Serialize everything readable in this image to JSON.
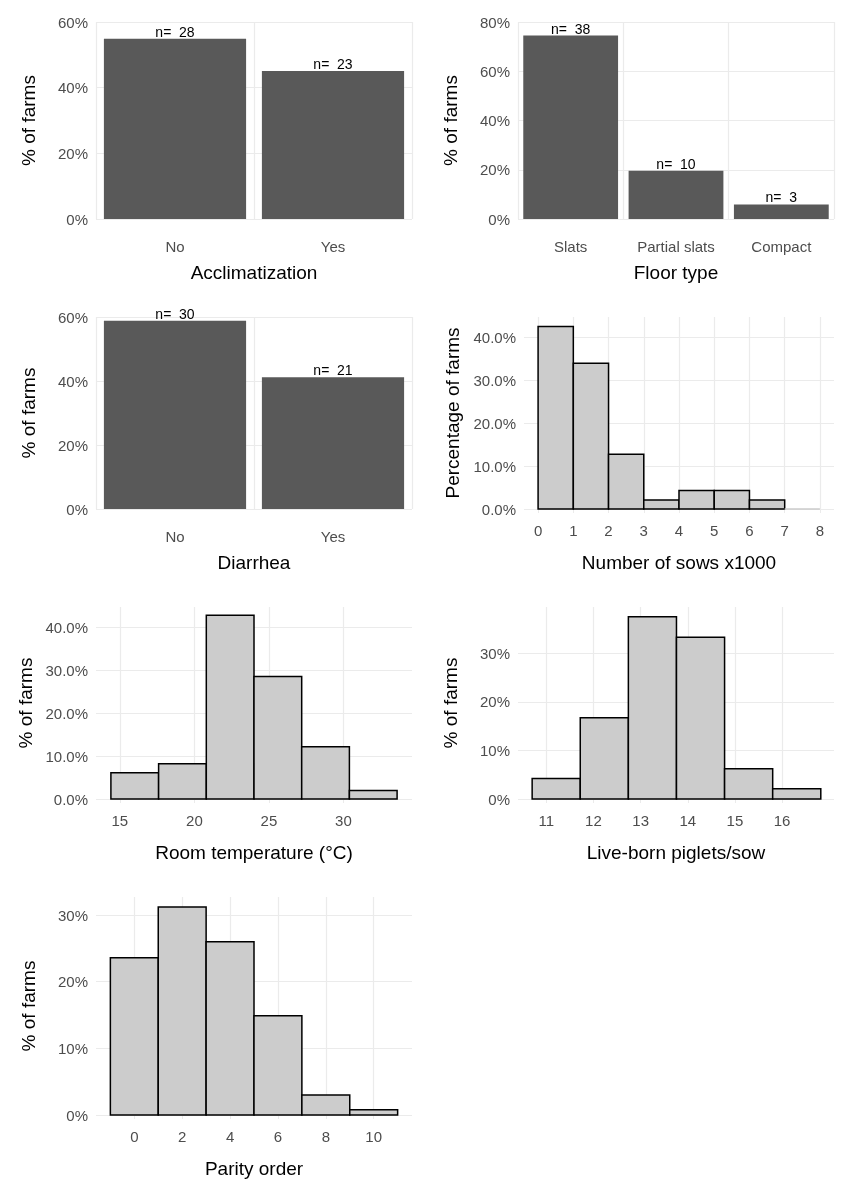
{
  "chart_data": [
    {
      "type": "bar",
      "xlabel": "Acclimatization",
      "ylabel": "% of farms",
      "categories": [
        "No",
        "Yes"
      ],
      "values": [
        54.9,
        45.1
      ],
      "annotations": [
        {
          "text": "n=  28",
          "x": "No",
          "y": 54.9
        },
        {
          "text": "n=  23",
          "x": "Yes",
          "y": 45.1
        }
      ],
      "color": "#595959",
      "ylim": [
        0,
        60
      ],
      "yticks": [
        {
          "value": 0,
          "label": "0%"
        },
        {
          "value": 20,
          "label": "20%"
        },
        {
          "value": 40,
          "label": "40%"
        },
        {
          "value": 60,
          "label": "60%"
        }
      ],
      "grid": true
    },
    {
      "type": "bar",
      "xlabel": "Floor type",
      "ylabel": "% of farms",
      "categories": [
        "Slats",
        "Partial slats",
        "Compact"
      ],
      "values": [
        74.5,
        19.6,
        5.9
      ],
      "annotations": [
        {
          "text": "n=  38",
          "x": "Slats",
          "y": 74.5
        },
        {
          "text": "n=  10",
          "x": "Partial slats",
          "y": 19.6
        },
        {
          "text": "n=  3",
          "x": "Compact",
          "y": 5.9
        }
      ],
      "color": "#595959",
      "ylim": [
        0,
        80
      ],
      "yticks": [
        {
          "value": 0,
          "label": "0%"
        },
        {
          "value": 20,
          "label": "20%"
        },
        {
          "value": 40,
          "label": "40%"
        },
        {
          "value": 60,
          "label": "60%"
        },
        {
          "value": 80,
          "label": "80%"
        }
      ],
      "grid": true
    },
    {
      "type": "bar",
      "xlabel": "Diarrhea",
      "ylabel": "% of farms",
      "categories": [
        "No",
        "Yes"
      ],
      "values": [
        58.8,
        41.2
      ],
      "annotations": [
        {
          "text": "n=  30",
          "x": "No",
          "y": 58.8
        },
        {
          "text": "n=  21",
          "x": "Yes",
          "y": 41.2
        }
      ],
      "color": "#595959",
      "ylim": [
        0,
        60
      ],
      "yticks": [
        {
          "value": 0,
          "label": "0%"
        },
        {
          "value": 20,
          "label": "20%"
        },
        {
          "value": 40,
          "label": "40%"
        },
        {
          "value": 60,
          "label": "60%"
        }
      ],
      "grid": true
    },
    {
      "type": "histogram",
      "xlabel": "Number of sows x1000",
      "ylabel": "Percentage of farms",
      "bins": [
        0,
        1,
        2,
        3,
        4,
        5,
        6,
        7,
        8
      ],
      "values": [
        42.6,
        34.0,
        12.8,
        2.1,
        4.3,
        4.3,
        2.1,
        0
      ],
      "color": "#cccccc",
      "xlim": [
        -0.4,
        8.4
      ],
      "xticks": [
        0,
        1,
        2,
        3,
        4,
        5,
        6,
        7,
        8
      ],
      "ylim": [
        0,
        44.8
      ],
      "yticks": [
        {
          "value": 0,
          "label": "0.0%"
        },
        {
          "value": 10,
          "label": "10.0%"
        },
        {
          "value": 20,
          "label": "20.0%"
        },
        {
          "value": 30,
          "label": "30.0%"
        },
        {
          "value": 40,
          "label": "40.0%"
        }
      ],
      "grid": true
    },
    {
      "type": "histogram",
      "xlabel": "Room temperature (°C)",
      "ylabel": "% of farms",
      "bins": [
        14.4,
        17.6,
        20.8,
        24.0,
        27.2,
        30.4,
        33.6
      ],
      "values": [
        6.1,
        8.2,
        42.9,
        28.6,
        12.2,
        2.0
      ],
      "color": "#cccccc",
      "xlim": [
        13.4,
        34.6
      ],
      "xticks": [
        15,
        20,
        25,
        30
      ],
      "ylim": [
        0,
        44.8
      ],
      "yticks": [
        {
          "value": 0,
          "label": "0.0%"
        },
        {
          "value": 10,
          "label": "10.0%"
        },
        {
          "value": 20,
          "label": "20.0%"
        },
        {
          "value": 30,
          "label": "30.0%"
        },
        {
          "value": 40,
          "label": "40.0%"
        }
      ],
      "grid": true
    },
    {
      "type": "histogram",
      "xlabel": "Live-born piglets/sow",
      "ylabel": "% of farms",
      "bins": [
        10.7,
        11.72,
        12.74,
        13.76,
        14.78,
        15.8,
        16.82
      ],
      "values": [
        4.2,
        16.7,
        37.5,
        33.3,
        6.2,
        2.1
      ],
      "color": "#cccccc",
      "xlim": [
        10.4,
        17.1
      ],
      "xticks": [
        11,
        12,
        13,
        14,
        15,
        16
      ],
      "ylim": [
        0,
        39.5
      ],
      "yticks": [
        {
          "value": 0,
          "label": "0%"
        },
        {
          "value": 10,
          "label": "10%"
        },
        {
          "value": 20,
          "label": "20%"
        },
        {
          "value": 30,
          "label": "30%"
        }
      ],
      "grid": true
    },
    {
      "type": "histogram",
      "xlabel": "Parity order",
      "ylabel": "% of farms",
      "bins": [
        -1,
        1,
        3,
        5,
        7,
        9,
        11
      ],
      "values": [
        23.6,
        31.2,
        26.0,
        14.9,
        3.0,
        0.8
      ],
      "color": "#cccccc",
      "xlim": [
        -1.6,
        11.6
      ],
      "xticks": [
        0,
        2,
        4,
        6,
        8,
        10
      ],
      "ylim": [
        0,
        32.7
      ],
      "yticks": [
        {
          "value": 0,
          "label": "0%"
        },
        {
          "value": 10,
          "label": "10%"
        },
        {
          "value": 20,
          "label": "20%"
        },
        {
          "value": 30,
          "label": "30%"
        }
      ],
      "grid": true
    }
  ]
}
